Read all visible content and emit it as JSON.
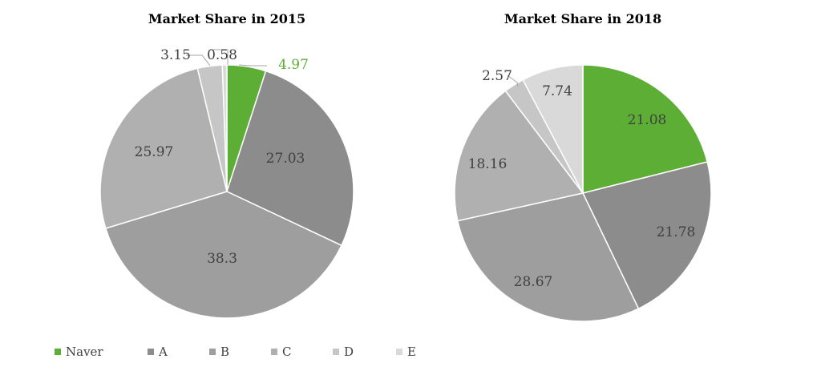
{
  "series_names": [
    "Naver",
    "A",
    "B",
    "C",
    "D",
    "E"
  ],
  "colors": {
    "Naver": "#5DAE35",
    "A": "#8C8C8C",
    "B": "#9E9E9E",
    "C": "#B0B0B0",
    "D": "#C6C6C6",
    "E": "#D9D9D9",
    "highlight_text": "#5DAE35",
    "label_text": "#404040"
  },
  "chart_data": [
    {
      "type": "pie",
      "title": "Market Share in 2015",
      "categories": [
        "Naver",
        "A",
        "B",
        "C",
        "D",
        "E"
      ],
      "values": [
        4.97,
        27.03,
        38.3,
        25.97,
        3.15,
        0.58
      ],
      "labels": [
        "4.97",
        "27.03",
        "38.3",
        "25.97",
        "3.15",
        "0.58"
      ]
    },
    {
      "type": "pie",
      "title": "Market Share in 2018",
      "categories": [
        "Naver",
        "A",
        "B",
        "C",
        "D",
        "E"
      ],
      "values": [
        21.08,
        21.78,
        28.67,
        18.16,
        2.57,
        7.74
      ],
      "labels": [
        "21.08",
        "21.78",
        "28.67",
        "18.16",
        "2.57",
        "7.74"
      ]
    }
  ],
  "legend": {
    "position": "bottom-left",
    "entries": [
      "Naver",
      "A",
      "B",
      "C",
      "D",
      "E"
    ]
  }
}
